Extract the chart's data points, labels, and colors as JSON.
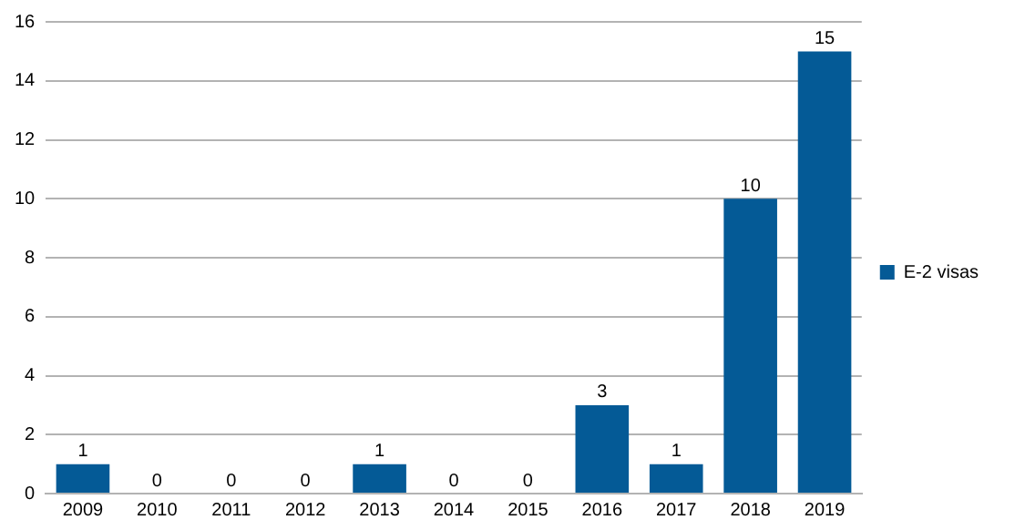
{
  "chart_data": {
    "type": "bar",
    "categories": [
      "2009",
      "2010",
      "2011",
      "2012",
      "2013",
      "2014",
      "2015",
      "2016",
      "2017",
      "2018",
      "2019"
    ],
    "series": [
      {
        "name": "E-2 visas",
        "color": "#045a96",
        "values": [
          1,
          0,
          0,
          0,
          1,
          0,
          0,
          3,
          1,
          10,
          15
        ]
      }
    ],
    "ylim": [
      0,
      16
    ],
    "yticks": [
      0,
      2,
      4,
      6,
      8,
      10,
      12,
      14,
      16
    ],
    "grid": "y",
    "legend": "right",
    "data_labels": true
  }
}
